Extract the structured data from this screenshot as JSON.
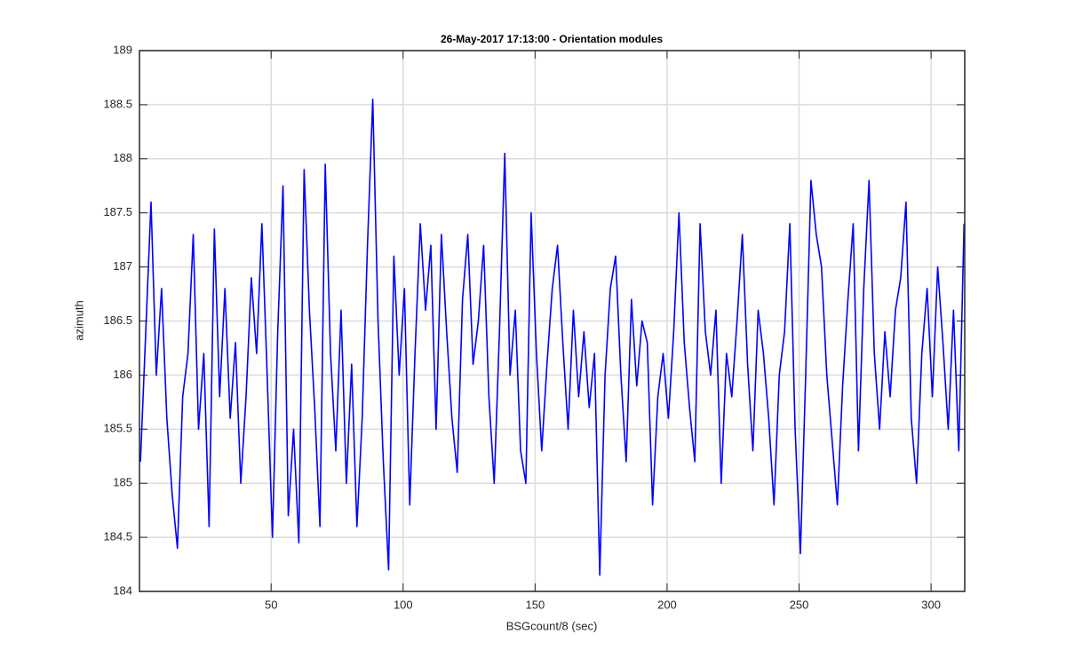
{
  "chart_data": {
    "type": "line",
    "title": "26-May-2017 17:13:00 - Orientation modules",
    "x_label": "BSGcount/8 (sec)",
    "y_label": "azimuth",
    "color": "#0000ff",
    "grid": true,
    "xlim": [
      0.125,
      312.75
    ],
    "ylim": [
      184,
      189
    ],
    "xticks": [
      50,
      100,
      150,
      200,
      250,
      300
    ],
    "yticks": [
      184,
      184.5,
      185,
      185.5,
      186,
      186.5,
      187,
      187.5,
      188,
      188.5,
      189
    ],
    "x": [
      0.5,
      2.5,
      4.5,
      6.5,
      8.5,
      10.5,
      12.5,
      14.5,
      16.5,
      18.5,
      20.5,
      22.5,
      24.5,
      26.5,
      28.5,
      30.5,
      32.5,
      34.5,
      36.5,
      38.5,
      40.5,
      42.5,
      44.5,
      46.5,
      48.5,
      50.5,
      52.5,
      54.5,
      56.5,
      58.5,
      60.5,
      62.5,
      64.5,
      66.5,
      68.5,
      70.5,
      72.5,
      74.5,
      76.5,
      78.5,
      80.5,
      82.5,
      84.5,
      86.5,
      88.5,
      90.5,
      92.5,
      94.5,
      96.5,
      98.5,
      100.5,
      102.5,
      104.5,
      106.5,
      108.5,
      110.5,
      112.5,
      114.5,
      116.5,
      118.5,
      120.5,
      122.5,
      124.5,
      126.5,
      128.5,
      130.5,
      132.5,
      134.5,
      136.5,
      138.5,
      140.5,
      142.5,
      144.5,
      146.5,
      148.5,
      150.5,
      152.5,
      154.5,
      156.5,
      158.5,
      160.5,
      162.5,
      164.5,
      166.5,
      168.5,
      170.5,
      172.5,
      174.5,
      176.5,
      178.5,
      180.5,
      182.5,
      184.5,
      186.5,
      188.5,
      190.5,
      192.5,
      194.5,
      196.5,
      198.5,
      200.5,
      202.5,
      204.5,
      206.5,
      208.5,
      210.5,
      212.5,
      214.5,
      216.5,
      218.5,
      220.5,
      222.5,
      224.5,
      226.5,
      228.5,
      230.5,
      232.5,
      234.5,
      236.5,
      238.5,
      240.5,
      242.5,
      244.5,
      246.5,
      248.5,
      250.5,
      252.5,
      254.5,
      256.5,
      258.5,
      260.5,
      262.5,
      264.5,
      266.5,
      268.5,
      270.5,
      272.5,
      274.5,
      276.5,
      278.5,
      280.5,
      282.5,
      284.5,
      286.5,
      288.5,
      290.5,
      292.5,
      294.5,
      296.5,
      298.5,
      300.5,
      302.5,
      304.5,
      306.5,
      308.5,
      310.5,
      312.5
    ],
    "values": [
      185.2,
      186.4,
      187.6,
      186.0,
      186.8,
      185.6,
      184.9,
      184.4,
      185.8,
      186.2,
      187.3,
      185.5,
      186.2,
      184.6,
      187.35,
      185.8,
      186.8,
      185.6,
      186.3,
      185.0,
      185.8,
      186.9,
      186.2,
      187.4,
      186.0,
      184.5,
      186.4,
      187.75,
      184.7,
      185.5,
      184.45,
      187.9,
      186.6,
      185.7,
      184.6,
      187.95,
      186.2,
      185.3,
      186.6,
      185.0,
      186.1,
      184.6,
      185.6,
      187.2,
      188.55,
      186.5,
      185.2,
      184.2,
      187.1,
      186.0,
      186.8,
      184.8,
      186.2,
      187.4,
      186.6,
      187.2,
      185.5,
      187.3,
      186.4,
      185.6,
      185.1,
      186.7,
      187.3,
      186.1,
      186.5,
      187.2,
      185.8,
      185.0,
      186.4,
      188.05,
      186.0,
      186.6,
      185.3,
      185.0,
      187.5,
      186.2,
      185.3,
      186.1,
      186.8,
      187.2,
      186.3,
      185.5,
      186.6,
      185.8,
      186.4,
      185.7,
      186.2,
      184.15,
      186.0,
      186.8,
      187.1,
      186.0,
      185.2,
      186.7,
      185.9,
      186.5,
      186.3,
      184.8,
      185.8,
      186.2,
      185.6,
      186.4,
      187.5,
      186.3,
      185.7,
      185.2,
      187.4,
      186.4,
      186.0,
      186.6,
      185.0,
      186.2,
      185.8,
      186.5,
      187.3,
      186.1,
      185.3,
      186.6,
      186.2,
      185.6,
      184.8,
      186.0,
      186.4,
      187.4,
      185.5,
      184.35,
      186.0,
      187.8,
      187.3,
      187.0,
      186.0,
      185.4,
      184.8,
      185.9,
      186.7,
      187.4,
      185.3,
      186.8,
      187.8,
      186.2,
      185.5,
      186.4,
      185.8,
      186.6,
      186.9,
      187.6,
      185.6,
      185.0,
      186.2,
      186.8,
      185.8,
      187.0,
      186.3,
      185.5,
      186.6,
      185.3,
      187.4
    ]
  }
}
